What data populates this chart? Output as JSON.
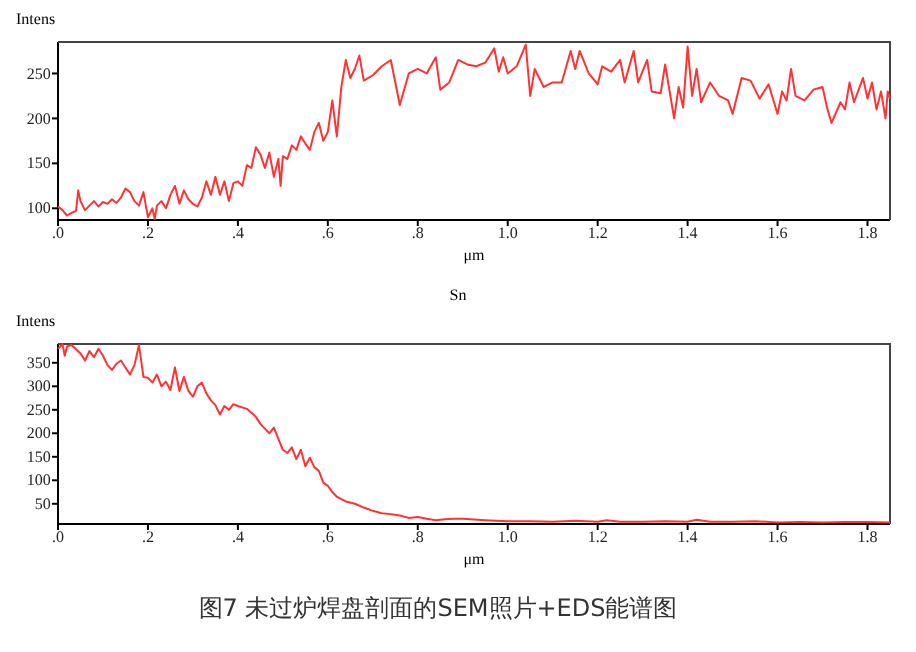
{
  "chart_data": [
    {
      "type": "line",
      "ylabel": "Intens",
      "xlabel": "μm",
      "color": "#ff3333",
      "grid": false,
      "xlim": [
        0,
        1.85
      ],
      "ylim": [
        87,
        285
      ],
      "xticks": [
        {
          "value": 0,
          "label": ".0"
        },
        {
          "value": 0.2,
          "label": ".2"
        },
        {
          "value": 0.4,
          "label": ".4"
        },
        {
          "value": 0.6,
          "label": ".6"
        },
        {
          "value": 0.8,
          "label": ".8"
        },
        {
          "value": 1,
          "label": "1.0"
        },
        1.2,
        1.4,
        1.6,
        1.8
      ],
      "yticks": [
        100,
        150,
        200,
        250
      ],
      "x": [
        0,
        0.01,
        0.02,
        0.03,
        0.04,
        0.045,
        0.05,
        0.06,
        0.07,
        0.08,
        0.09,
        0.1,
        0.11,
        0.12,
        0.13,
        0.14,
        0.15,
        0.16,
        0.17,
        0.18,
        0.19,
        0.2,
        0.21,
        0.215,
        0.22,
        0.23,
        0.24,
        0.25,
        0.26,
        0.27,
        0.28,
        0.29,
        0.3,
        0.31,
        0.32,
        0.33,
        0.34,
        0.35,
        0.36,
        0.37,
        0.38,
        0.39,
        0.4,
        0.41,
        0.42,
        0.43,
        0.44,
        0.45,
        0.46,
        0.47,
        0.48,
        0.49,
        0.495,
        0.5,
        0.51,
        0.52,
        0.53,
        0.54,
        0.55,
        0.56,
        0.57,
        0.58,
        0.59,
        0.6,
        0.61,
        0.62,
        0.63,
        0.64,
        0.65,
        0.66,
        0.67,
        0.68,
        0.7,
        0.72,
        0.74,
        0.76,
        0.78,
        0.8,
        0.82,
        0.84,
        0.85,
        0.87,
        0.89,
        0.91,
        0.93,
        0.95,
        0.97,
        0.98,
        0.99,
        1,
        1.02,
        1.04,
        1.05,
        1.06,
        1.08,
        1.1,
        1.12,
        1.14,
        1.15,
        1.16,
        1.18,
        1.2,
        1.21,
        1.23,
        1.25,
        1.26,
        1.28,
        1.29,
        1.31,
        1.32,
        1.34,
        1.35,
        1.37,
        1.38,
        1.39,
        1.4,
        1.41,
        1.42,
        1.43,
        1.45,
        1.47,
        1.49,
        1.5,
        1.52,
        1.54,
        1.56,
        1.58,
        1.6,
        1.61,
        1.62,
        1.63,
        1.64,
        1.66,
        1.68,
        1.7,
        1.71,
        1.72,
        1.74,
        1.75,
        1.76,
        1.77,
        1.79,
        1.8,
        1.81,
        1.82,
        1.83,
        1.84,
        1.845,
        1.85
      ],
      "values": [
        102,
        98,
        92,
        95,
        97,
        120,
        108,
        98,
        103,
        108,
        102,
        107,
        105,
        110,
        106,
        112,
        122,
        118,
        108,
        103,
        118,
        90,
        100,
        88,
        103,
        108,
        100,
        115,
        125,
        105,
        120,
        110,
        105,
        102,
        112,
        130,
        115,
        135,
        115,
        130,
        108,
        128,
        130,
        125,
        148,
        145,
        168,
        160,
        145,
        162,
        135,
        155,
        125,
        158,
        155,
        170,
        165,
        180,
        172,
        165,
        185,
        195,
        175,
        185,
        220,
        180,
        235,
        265,
        245,
        255,
        270,
        242,
        248,
        258,
        265,
        215,
        250,
        255,
        250,
        268,
        232,
        240,
        265,
        260,
        258,
        262,
        278,
        252,
        268,
        250,
        258,
        282,
        225,
        255,
        235,
        240,
        240,
        275,
        255,
        275,
        250,
        238,
        258,
        252,
        265,
        240,
        275,
        240,
        265,
        230,
        228,
        260,
        200,
        235,
        212,
        280,
        225,
        255,
        218,
        240,
        225,
        220,
        205,
        245,
        242,
        222,
        238,
        205,
        230,
        220,
        255,
        225,
        220,
        232,
        235,
        212,
        195,
        218,
        210,
        240,
        218,
        245,
        222,
        240,
        210,
        230,
        200,
        230,
        222
      ]
    },
    {
      "type": "line",
      "title": "Sn",
      "ylabel": "Intens",
      "xlabel": "μm",
      "color": "#ff3333",
      "grid": false,
      "xlim": [
        0,
        1.85
      ],
      "ylim": [
        7,
        390
      ],
      "xticks": [
        {
          "value": 0,
          "label": ".0"
        },
        {
          "value": 0.2,
          "label": ".2"
        },
        {
          "value": 0.4,
          "label": ".4"
        },
        {
          "value": 0.6,
          "label": ".6"
        },
        {
          "value": 0.8,
          "label": ".8"
        },
        {
          "value": 1,
          "label": "1.0"
        },
        1.2,
        1.4,
        1.6,
        1.8
      ],
      "yticks": [
        50,
        100,
        150,
        200,
        250,
        300,
        350
      ],
      "x": [
        0,
        0.01,
        0.015,
        0.02,
        0.03,
        0.05,
        0.06,
        0.07,
        0.08,
        0.09,
        0.1,
        0.11,
        0.12,
        0.13,
        0.14,
        0.15,
        0.16,
        0.17,
        0.18,
        0.19,
        0.2,
        0.21,
        0.22,
        0.23,
        0.24,
        0.25,
        0.26,
        0.27,
        0.28,
        0.29,
        0.3,
        0.31,
        0.32,
        0.33,
        0.34,
        0.35,
        0.36,
        0.37,
        0.38,
        0.39,
        0.4,
        0.42,
        0.44,
        0.45,
        0.46,
        0.47,
        0.48,
        0.49,
        0.5,
        0.51,
        0.52,
        0.53,
        0.54,
        0.55,
        0.56,
        0.57,
        0.58,
        0.59,
        0.6,
        0.61,
        0.62,
        0.63,
        0.64,
        0.66,
        0.68,
        0.7,
        0.72,
        0.74,
        0.76,
        0.78,
        0.8,
        0.82,
        0.84,
        0.86,
        0.88,
        0.9,
        0.95,
        1,
        1.05,
        1.1,
        1.15,
        1.2,
        1.22,
        1.25,
        1.3,
        1.35,
        1.4,
        1.42,
        1.45,
        1.5,
        1.55,
        1.6,
        1.65,
        1.7,
        1.75,
        1.8,
        1.85
      ],
      "values": [
        380,
        390,
        365,
        385,
        388,
        370,
        355,
        375,
        362,
        380,
        365,
        345,
        335,
        348,
        355,
        340,
        325,
        345,
        388,
        320,
        318,
        308,
        325,
        300,
        310,
        292,
        340,
        290,
        320,
        290,
        278,
        300,
        308,
        285,
        270,
        260,
        240,
        258,
        250,
        262,
        258,
        252,
        235,
        220,
        210,
        200,
        212,
        188,
        165,
        158,
        170,
        145,
        165,
        130,
        148,
        128,
        120,
        95,
        88,
        75,
        65,
        60,
        55,
        50,
        42,
        35,
        30,
        28,
        25,
        20,
        22,
        18,
        15,
        17,
        18,
        18,
        15,
        13,
        13,
        12,
        14,
        12,
        15,
        12,
        12,
        13,
        12,
        16,
        12,
        12,
        13,
        10,
        11,
        10,
        11,
        11,
        10
      ],
      "annotations": [
        "图7 未过炉焊盘剖面的SEM照片+EDS能谱图"
      ]
    }
  ]
}
